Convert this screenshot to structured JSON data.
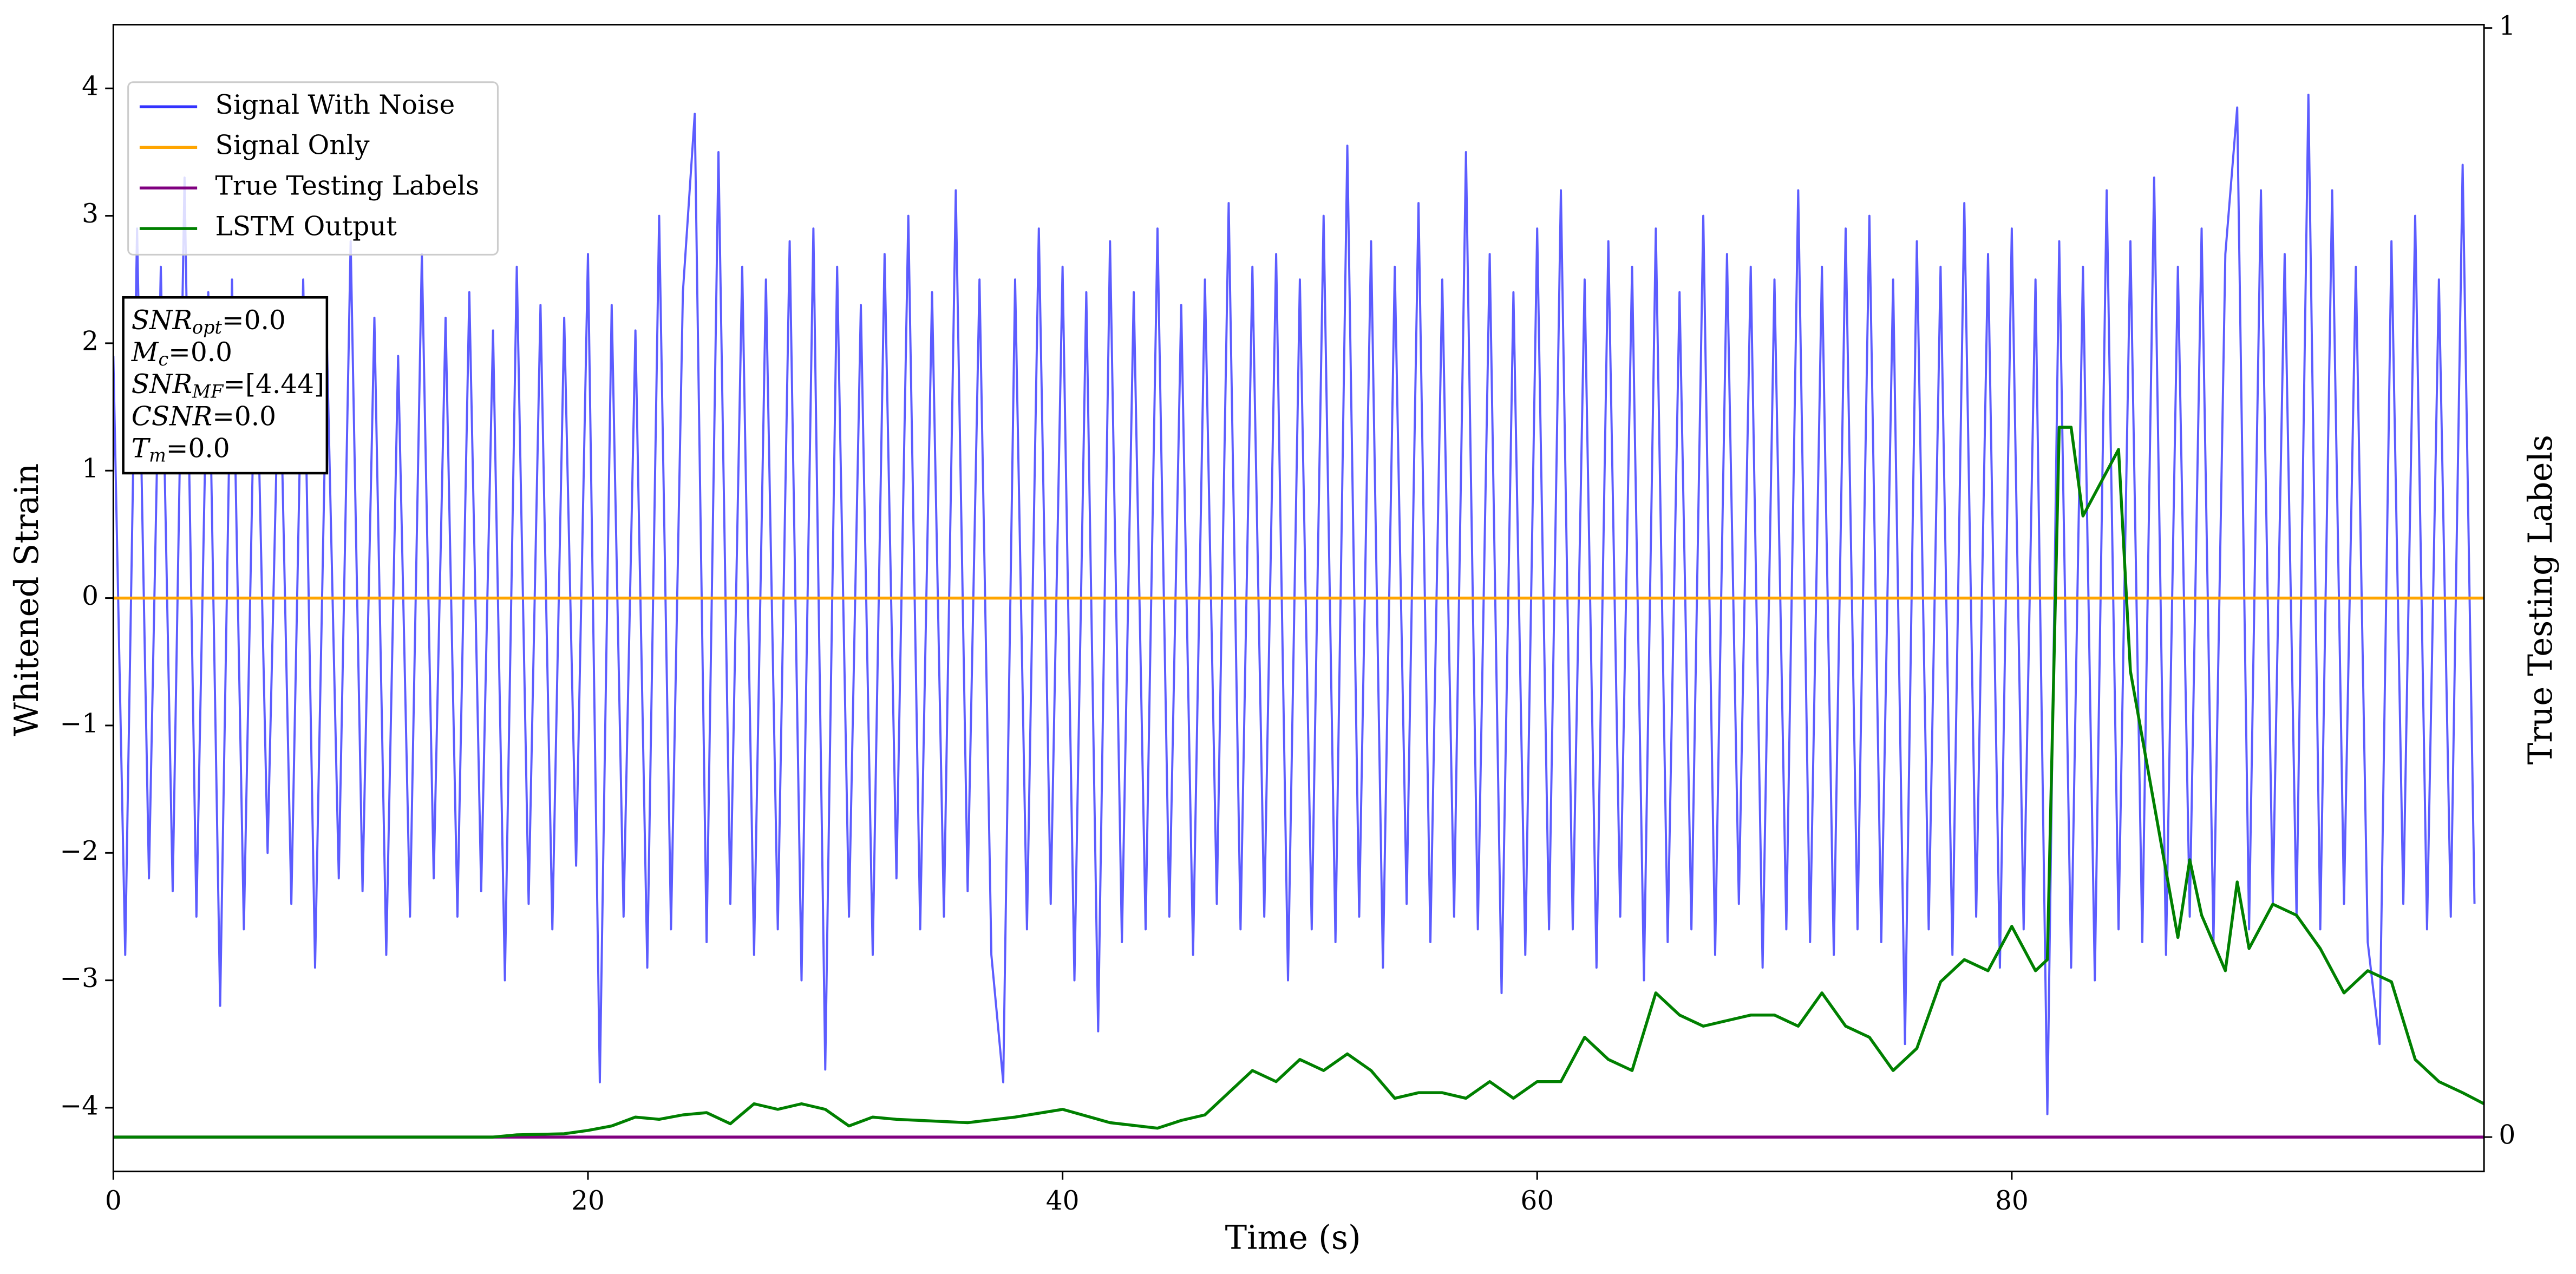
{
  "chart_data": {
    "type": "line",
    "xlabel": "Time (s)",
    "ylabel": "Whitened Strain",
    "y2label": "True Testing Labels",
    "xlim": [
      0,
      99.9
    ],
    "xticks": [
      0,
      20,
      40,
      60,
      80
    ],
    "ylim": [
      -4.5,
      4.5
    ],
    "yticks": [
      {
        "value": -4,
        "label": "−4"
      },
      {
        "value": -3,
        "label": "−3"
      },
      {
        "value": -2,
        "label": "−2"
      },
      {
        "value": -1,
        "label": "−1"
      },
      0,
      1,
      2,
      3,
      4
    ],
    "y2lim": [
      -0.031,
      1.003
    ],
    "y2ticks": [
      0,
      1
    ],
    "legend": "upper left",
    "annotation": [
      {
        "main": "SNR",
        "sub": "opt",
        "rest": "=0.0"
      },
      {
        "main": "M",
        "sub": "c",
        "rest": "=0.0"
      },
      {
        "main": "SNR",
        "sub": "MF",
        "rest": "=[4.44]"
      },
      {
        "main": "CSNR",
        "rest": "=0.0"
      },
      {
        "main": "T",
        "sub": "m",
        "rest": "=0.0"
      }
    ],
    "series": [
      {
        "name": "Signal With Noise",
        "color": "#3333ff",
        "x": [
          0,
          0.5,
          1,
          1.5,
          2,
          2.5,
          3,
          3.5,
          4,
          4.5,
          5,
          5.5,
          6,
          6.5,
          7,
          7.5,
          8,
          8.5,
          9,
          9.5,
          10,
          10.5,
          11,
          11.5,
          12,
          12.5,
          13,
          13.5,
          14,
          14.5,
          15,
          15.5,
          16,
          16.5,
          17,
          17.5,
          18,
          18.5,
          19,
          19.5,
          20,
          20.5,
          21,
          21.5,
          22,
          22.5,
          23,
          23.5,
          24,
          24.5,
          25,
          25.5,
          26,
          26.5,
          27,
          27.5,
          28,
          28.5,
          29,
          29.5,
          30,
          30.5,
          31,
          31.5,
          32,
          32.5,
          33,
          33.5,
          34,
          34.5,
          35,
          35.5,
          36,
          36.5,
          37,
          37.5,
          38,
          38.5,
          39,
          39.5,
          40,
          40.5,
          41,
          41.5,
          42,
          42.5,
          43,
          43.5,
          44,
          44.5,
          45,
          45.5,
          46,
          46.5,
          47,
          47.5,
          48,
          48.5,
          49,
          49.5,
          50,
          50.5,
          51,
          51.5,
          52,
          52.5,
          53,
          53.5,
          54,
          54.5,
          55,
          55.5,
          56,
          56.5,
          57,
          57.5,
          58,
          58.5,
          59,
          59.5,
          60,
          60.5,
          61,
          61.5,
          62,
          62.5,
          63,
          63.5,
          64,
          64.5,
          65,
          65.5,
          66,
          66.5,
          67,
          67.5,
          68,
          68.5,
          69,
          69.5,
          70,
          70.5,
          71,
          71.5,
          72,
          72.5,
          73,
          73.5,
          74,
          74.5,
          75,
          75.5,
          76,
          76.5,
          77,
          77.5,
          78,
          78.5,
          79,
          79.5,
          80,
          80.5,
          81,
          81.5,
          82,
          82.5,
          83,
          83.5,
          84,
          84.5,
          85,
          85.5,
          86,
          86.5,
          87,
          87.5,
          88,
          88.5,
          89,
          89.5,
          90,
          90.5,
          91,
          91.5,
          92,
          92.5,
          93,
          93.5,
          94,
          94.5,
          95,
          95.5,
          96,
          96.5,
          97,
          97.5,
          98,
          98.5,
          99,
          99.5
        ],
        "values": [
          1.9,
          -2.8,
          2.9,
          -2.2,
          2.6,
          -2.3,
          3.3,
          -2.5,
          2.4,
          -3.2,
          2.5,
          -2.6,
          2.3,
          -2.0,
          2.1,
          -2.4,
          2.5,
          -2.9,
          2.0,
          -2.2,
          2.8,
          -2.3,
          2.2,
          -2.8,
          1.9,
          -2.5,
          2.7,
          -2.2,
          2.2,
          -2.5,
          2.4,
          -2.3,
          2.1,
          -3.0,
          2.6,
          -2.4,
          2.3,
          -2.6,
          2.2,
          -2.1,
          2.7,
          -3.8,
          2.3,
          -2.5,
          2.1,
          -2.9,
          3.0,
          -2.6,
          2.4,
          3.8,
          -2.7,
          3.5,
          -2.4,
          2.6,
          -2.8,
          2.5,
          -2.6,
          2.8,
          -3.0,
          2.9,
          -3.7,
          2.6,
          -2.5,
          2.3,
          -2.8,
          2.7,
          -2.2,
          3.0,
          -2.6,
          2.4,
          -2.5,
          3.2,
          -2.3,
          2.5,
          -2.8,
          -3.8,
          2.5,
          -2.6,
          2.9,
          -2.4,
          2.6,
          -3.0,
          2.4,
          -3.4,
          2.8,
          -2.7,
          2.4,
          -2.6,
          2.9,
          -2.5,
          2.3,
          -2.8,
          2.5,
          -2.4,
          3.1,
          -2.6,
          2.6,
          -2.5,
          2.7,
          -3.0,
          2.5,
          -2.6,
          3.0,
          -2.7,
          3.55,
          -2.5,
          2.8,
          -2.9,
          2.6,
          -2.4,
          3.1,
          -2.7,
          2.5,
          -2.5,
          3.5,
          -2.6,
          2.7,
          -3.1,
          2.4,
          -2.8,
          2.9,
          -2.6,
          3.2,
          -2.6,
          2.5,
          -2.9,
          2.8,
          -2.5,
          2.6,
          -3.0,
          2.9,
          -2.7,
          2.4,
          -2.6,
          3.0,
          -2.8,
          2.7,
          -2.4,
          2.6,
          -2.9,
          2.5,
          -2.6,
          3.2,
          -2.7,
          2.6,
          -2.8,
          2.9,
          -2.6,
          3.0,
          -2.7,
          2.5,
          -3.5,
          2.8,
          -2.6,
          2.6,
          -2.8,
          3.1,
          -2.5,
          2.7,
          -2.9,
          2.9,
          -2.6,
          2.5,
          -4.05,
          2.8,
          -2.9,
          2.6,
          -3.0,
          3.2,
          -2.6,
          2.8,
          -2.7,
          3.3,
          -2.8,
          2.6,
          -2.5,
          2.9,
          -2.7,
          2.7,
          3.85,
          -2.6,
          3.2,
          -2.4,
          2.7,
          -2.5,
          3.95,
          -2.6,
          3.2,
          -2.4,
          2.6,
          -2.7,
          -3.5,
          2.8,
          -2.4,
          3.0,
          -2.6,
          2.5,
          -2.5,
          3.4,
          -2.4
        ]
      },
      {
        "name": "Signal Only",
        "color": "#ffa500",
        "x": [
          0,
          99.9
        ],
        "values": [
          0,
          0
        ]
      },
      {
        "name": "True Testing Labels",
        "color": "#800080",
        "axis": "y2",
        "x": [
          0,
          99.9
        ],
        "values": [
          0,
          0
        ]
      },
      {
        "name": "LSTM Output",
        "color": "#008000",
        "axis": "y2",
        "x": [
          0,
          16,
          17,
          19,
          20,
          21,
          22,
          23,
          24,
          25,
          26,
          27,
          28,
          29,
          30,
          31,
          32,
          33,
          34,
          36,
          38,
          40,
          42,
          44,
          45,
          46,
          47,
          48,
          49,
          50,
          51,
          52,
          53,
          54,
          55,
          56,
          57,
          58,
          59,
          60,
          61,
          62,
          63,
          64,
          65,
          66,
          67,
          68,
          69,
          70,
          71,
          72,
          73,
          74,
          75,
          76,
          77,
          78,
          79,
          80,
          81,
          81.5,
          82,
          82.5,
          83,
          84,
          84.5,
          85,
          86,
          87,
          87.5,
          88,
          89,
          89.5,
          90,
          91,
          92,
          93,
          94,
          95,
          96,
          97,
          98,
          99,
          99.9
        ],
        "values": [
          0,
          0,
          0.002,
          0.003,
          0.006,
          0.01,
          0.018,
          0.016,
          0.02,
          0.022,
          0.012,
          0.03,
          0.025,
          0.03,
          0.025,
          0.01,
          0.018,
          0.016,
          0.015,
          0.013,
          0.018,
          0.025,
          0.013,
          0.008,
          0.015,
          0.02,
          0.04,
          0.06,
          0.05,
          0.07,
          0.06,
          0.075,
          0.06,
          0.035,
          0.04,
          0.04,
          0.035,
          0.05,
          0.035,
          0.05,
          0.05,
          0.09,
          0.07,
          0.06,
          0.13,
          0.11,
          0.1,
          0.105,
          0.11,
          0.11,
          0.1,
          0.13,
          0.1,
          0.09,
          0.06,
          0.08,
          0.14,
          0.16,
          0.15,
          0.19,
          0.15,
          0.16,
          0.64,
          0.64,
          0.56,
          0.6,
          0.62,
          0.42,
          0.3,
          0.18,
          0.25,
          0.2,
          0.15,
          0.23,
          0.17,
          0.21,
          0.2,
          0.17,
          0.13,
          0.15,
          0.14,
          0.07,
          0.05,
          0.04,
          0.03
        ]
      }
    ]
  }
}
